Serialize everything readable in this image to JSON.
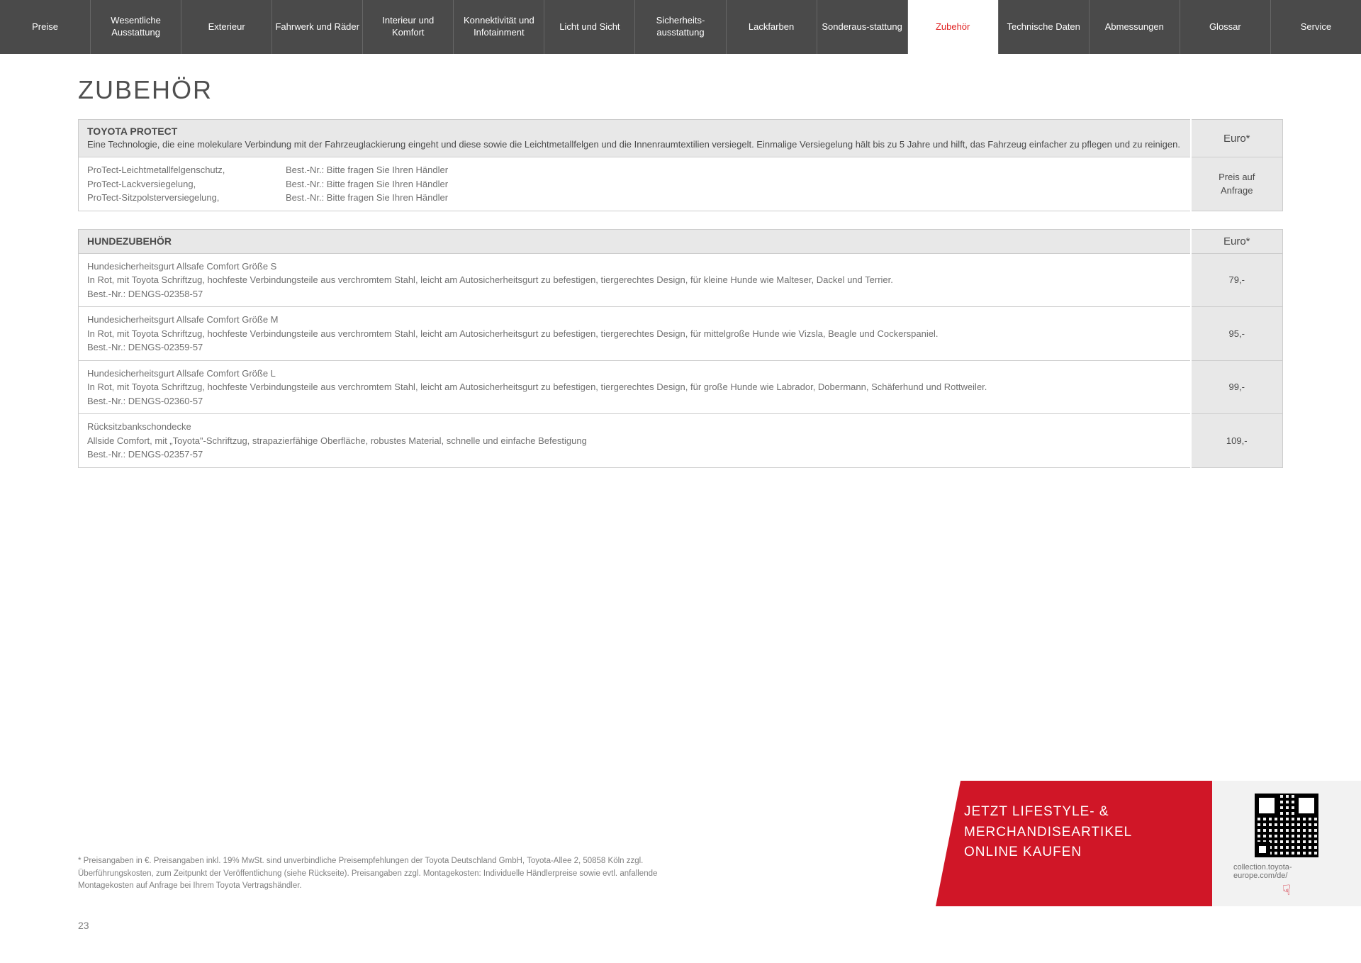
{
  "nav": {
    "tabs": [
      {
        "label": "Preise"
      },
      {
        "label": "Wesentliche Ausstattung"
      },
      {
        "label": "Exterieur"
      },
      {
        "label": "Fahrwerk und Räder"
      },
      {
        "label": "Interieur und Komfort"
      },
      {
        "label": "Konnektivität und Infotainment"
      },
      {
        "label": "Licht und Sicht"
      },
      {
        "label": "Sicherheits-ausstattung"
      },
      {
        "label": "Lackfarben"
      },
      {
        "label": "Sonderaus-stattung"
      },
      {
        "label": "Zubehör"
      },
      {
        "label": "Technische Daten"
      },
      {
        "label": "Abmessungen"
      },
      {
        "label": "Glossar"
      },
      {
        "label": "Service"
      }
    ],
    "active": 10
  },
  "title": "ZUBEHÖR",
  "section1": {
    "header_title": "TOYOTA PROTECT",
    "header_desc": "Eine Technologie, die eine molekulare Verbindung mit der Fahrzeuglackierung eingeht und diese sowie die Leichtmetallfelgen und die Innenraumtextilien versiegelt. Einmalige Versiegelung hält bis zu 5 Jahre und hilft, das Fahrzeug einfacher zu pflegen und zu reinigen.",
    "price_header": "Euro*",
    "row1_c1_l1": "ProTect-Leichtmetallfelgenschutz,",
    "row1_c1_l2": "ProTect-Lackversiegelung,",
    "row1_c1_l3": "ProTect-Sitzpolsterversiegelung,",
    "row1_c2_l1": "Best.-Nr.: Bitte fragen Sie Ihren Händler",
    "row1_c2_l2": "Best.-Nr.: Bitte fragen Sie Ihren Händler",
    "row1_c2_l3": "Best.-Nr.: Bitte fragen Sie Ihren Händler",
    "row1_price_l1": "Preis auf",
    "row1_price_l2": "Anfrage"
  },
  "section2": {
    "header_title": "HUNDEZUBEHÖR",
    "price_header": "Euro*",
    "row1_l1": "Hundesicherheitsgurt Allsafe Comfort Größe S",
    "row1_l2": "In Rot, mit Toyota Schriftzug, hochfeste Verbindungsteile aus verchromtem Stahl, leicht am Autosicherheitsgurt zu befestigen, tiergerechtes Design, für kleine Hunde wie Malteser, Dackel und Terrier.",
    "row1_l3": "Best.-Nr.: DENGS-02358-57",
    "row1_price": "79,-",
    "row2_l1": "Hundesicherheitsgurt Allsafe Comfort Größe M",
    "row2_l2": "In Rot, mit Toyota Schriftzug, hochfeste Verbindungsteile aus verchromtem Stahl, leicht am Autosicherheitsgurt zu befestigen, tiergerechtes Design, für mittelgroße Hunde wie Vizsla, Beagle und Cockerspaniel.",
    "row2_l3": "Best.-Nr.: DENGS-02359-57",
    "row2_price": "95,-",
    "row3_l1": "Hundesicherheitsgurt Allsafe Comfort Größe L",
    "row3_l2": "In Rot, mit Toyota Schriftzug, hochfeste Verbindungsteile aus verchromtem Stahl, leicht am Autosicherheitsgurt zu befestigen, tiergerechtes Design, für große Hunde wie Labrador, Dobermann, Schäferhund und Rottweiler.",
    "row3_l3": "Best.-Nr.: DENGS-02360-57",
    "row3_price": "99,-",
    "row4_l1": "Rücksitzbankschondecke",
    "row4_l2": "Allside Comfort, mit „Toyota\"-Schriftzug, strapazierfähige Oberfläche, robustes Material, schnelle und einfache Befestigung",
    "row4_l3": "Best.-Nr.: DENGS-02357-57",
    "row4_price": "109,-"
  },
  "footnote": "* Preisangaben in €. Preisangaben inkl. 19% MwSt. sind unverbindliche Preisempfehlungen der Toyota Deutschland GmbH, Toyota-Allee 2, 50858 Köln zzgl. Überführungskosten, zum Zeitpunkt der Veröffentlichung (siehe Rückseite). Preisangaben zzgl. Montagekosten: Individuelle Händlerpreise sowie evtl. anfallende Montagekosten auf Anfrage bei Ihrem Toyota Vertragshändler.",
  "page_num": "23",
  "banner": {
    "line1": "JETZT LIFESTYLE- &",
    "line2": "MERCHANDISEARTIKEL",
    "line3": "ONLINE KAUFEN",
    "url": "collection.toyota-europe.com/de/"
  },
  "colors": {
    "nav_bg": "#4a4a4a",
    "active_text": "#e02020",
    "banner_red": "#d01627",
    "header_bg": "#e8e8e8",
    "text_primary": "#4a4a4a",
    "text_secondary": "#707070"
  }
}
